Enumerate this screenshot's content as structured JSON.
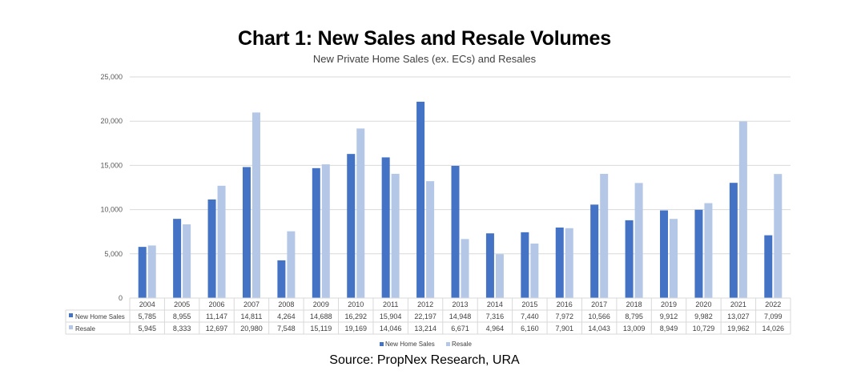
{
  "title": "Chart 1: New Sales and Resale Volumes",
  "subtitle": "New Private Home Sales (ex. ECs) and Resales",
  "source": "Source: PropNex Research, URA",
  "colors": {
    "new_home_sales": "#4472C4",
    "resale": "#B4C7E7",
    "grid": "#D9D9D9",
    "axis_text": "#595959",
    "table_border": "#D9D9D9"
  },
  "chart_data": {
    "type": "bar",
    "categories": [
      "2004",
      "2005",
      "2006",
      "2007",
      "2008",
      "2009",
      "2010",
      "2011",
      "2012",
      "2013",
      "2014",
      "2015",
      "2016",
      "2017",
      "2018",
      "2019",
      "2020",
      "2021",
      "2022"
    ],
    "series": [
      {
        "name": "New Home Sales",
        "values": [
          5785,
          8955,
          11147,
          14811,
          4264,
          14688,
          16292,
          15904,
          22197,
          14948,
          7316,
          7440,
          7972,
          10566,
          8795,
          9912,
          9982,
          13027,
          7099
        ],
        "labels": [
          "5,785",
          "8,955",
          "11,147",
          "14,811",
          "4,264",
          "14,688",
          "16,292",
          "15,904",
          "22,197",
          "14,948",
          "7,316",
          "7,440",
          "7,972",
          "10,566",
          "8,795",
          "9,912",
          "9,982",
          "13,027",
          "7,099"
        ]
      },
      {
        "name": "Resale",
        "values": [
          5945,
          8333,
          12697,
          20980,
          7548,
          15119,
          19169,
          14046,
          13214,
          6671,
          4964,
          6160,
          7901,
          14043,
          13009,
          8949,
          10729,
          19962,
          14026
        ],
        "labels": [
          "5,945",
          "8,333",
          "12,697",
          "20,980",
          "7,548",
          "15,119",
          "19,169",
          "14,046",
          "13,214",
          "6,671",
          "4,964",
          "6,160",
          "7,901",
          "14,043",
          "13,009",
          "8,949",
          "10,729",
          "19,962",
          "14,026"
        ]
      }
    ],
    "yticks": [
      "0",
      "5,000",
      "10,000",
      "15,000",
      "20,000",
      "25,000"
    ],
    "ylim": [
      0,
      25000
    ],
    "grid": true,
    "legend_position": "bottom",
    "data_table": true
  }
}
